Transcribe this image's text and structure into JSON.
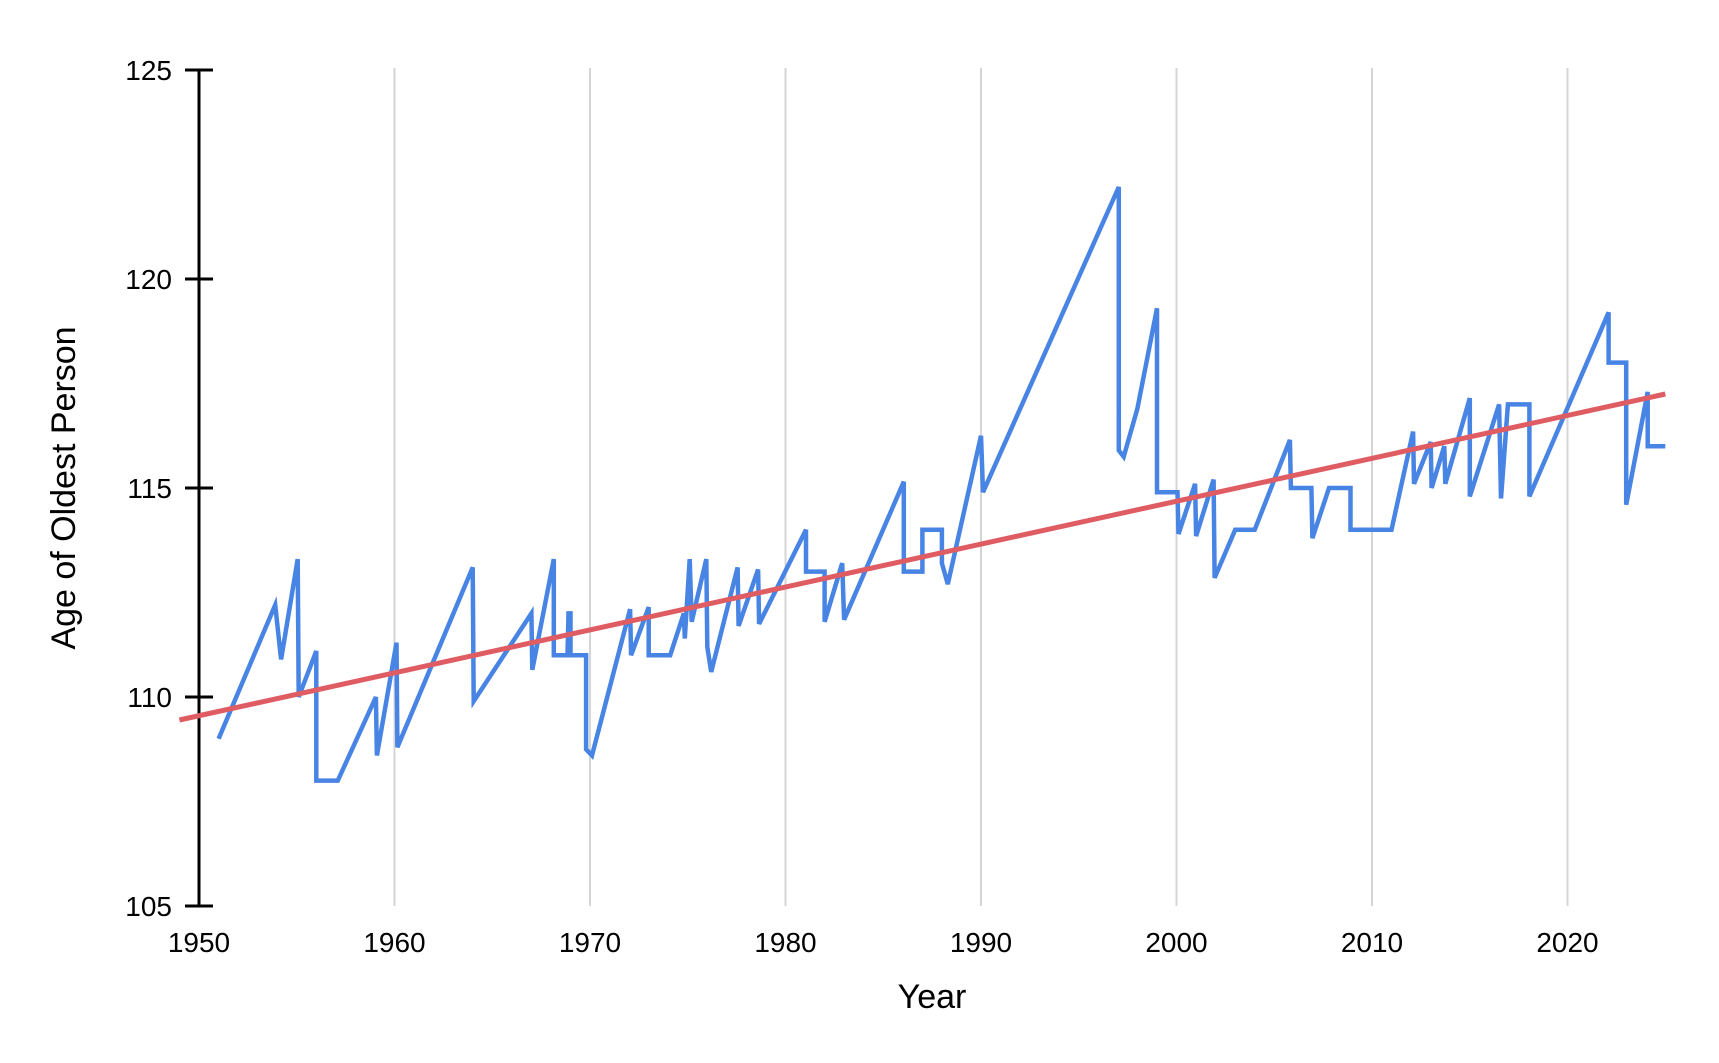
{
  "chart_data": {
    "type": "line",
    "title": "",
    "xlabel": "Year",
    "ylabel": "Age of Oldest Person",
    "xlim": [
      1950,
      2025
    ],
    "ylim": [
      105,
      125
    ],
    "x_ticks": [
      1950,
      1960,
      1970,
      1980,
      1990,
      2000,
      2010,
      2020
    ],
    "y_ticks": [
      105,
      110,
      115,
      120,
      125
    ],
    "grid": "vertical decade gridlines only",
    "legend_position": "none",
    "series": [
      {
        "name": "age-of-oldest-person",
        "style": "jagged sawtooth line",
        "color": "#4884e4",
        "stroke_width": 4.5,
        "points": [
          [
            1951.0,
            109.0
          ],
          [
            1953.9,
            112.2
          ],
          [
            1954.2,
            110.9
          ],
          [
            1955.05,
            113.3
          ],
          [
            1955.1,
            110.0
          ],
          [
            1956.0,
            111.1
          ],
          [
            1956.0,
            108.0
          ],
          [
            1957.1,
            108.0
          ],
          [
            1959.05,
            110.0
          ],
          [
            1959.1,
            108.6
          ],
          [
            1960.1,
            111.3
          ],
          [
            1960.15,
            108.8
          ],
          [
            1964.0,
            113.1
          ],
          [
            1964.05,
            109.9
          ],
          [
            1967.0,
            112.0
          ],
          [
            1967.05,
            110.65
          ],
          [
            1968.15,
            113.3
          ],
          [
            1968.15,
            111.0
          ],
          [
            1968.85,
            111.0
          ],
          [
            1968.9,
            112.0
          ],
          [
            1969.0,
            112.0
          ],
          [
            1969.0,
            111.0
          ],
          [
            1969.8,
            111.0
          ],
          [
            1969.8,
            108.75
          ],
          [
            1970.1,
            108.6
          ],
          [
            1972.05,
            112.1
          ],
          [
            1972.1,
            111.0
          ],
          [
            1973.0,
            112.15
          ],
          [
            1973.0,
            111.0
          ],
          [
            1974.1,
            111.0
          ],
          [
            1974.8,
            112.0
          ],
          [
            1974.85,
            111.4
          ],
          [
            1975.1,
            113.3
          ],
          [
            1975.2,
            111.8
          ],
          [
            1975.95,
            113.3
          ],
          [
            1976.0,
            111.2
          ],
          [
            1976.2,
            110.6
          ],
          [
            1977.55,
            113.1
          ],
          [
            1977.6,
            111.7
          ],
          [
            1978.6,
            113.05
          ],
          [
            1978.65,
            111.75
          ],
          [
            1981.05,
            114.0
          ],
          [
            1981.05,
            113.0
          ],
          [
            1982.0,
            113.0
          ],
          [
            1982.0,
            111.8
          ],
          [
            1982.9,
            113.2
          ],
          [
            1983.0,
            111.85
          ],
          [
            1986.05,
            115.15
          ],
          [
            1986.05,
            113.0
          ],
          [
            1987.0,
            113.0
          ],
          [
            1987.0,
            114.0
          ],
          [
            1988.0,
            114.0
          ],
          [
            1988.0,
            113.2
          ],
          [
            1988.3,
            112.7
          ],
          [
            1990.0,
            116.25
          ],
          [
            1990.1,
            114.9
          ],
          [
            1997.05,
            122.2
          ],
          [
            1997.05,
            115.9
          ],
          [
            1997.3,
            115.75
          ],
          [
            1998.0,
            116.9
          ],
          [
            1999.0,
            119.3
          ],
          [
            1999.0,
            114.9
          ],
          [
            2000.05,
            114.9
          ],
          [
            2000.1,
            113.9
          ],
          [
            2000.95,
            115.1
          ],
          [
            2001.0,
            113.85
          ],
          [
            2001.9,
            115.2
          ],
          [
            2001.95,
            112.85
          ],
          [
            2003.0,
            114.0
          ],
          [
            2004.0,
            114.0
          ],
          [
            2005.8,
            116.15
          ],
          [
            2005.85,
            115.0
          ],
          [
            2006.9,
            115.0
          ],
          [
            2006.95,
            113.8
          ],
          [
            2007.8,
            115.0
          ],
          [
            2008.9,
            115.0
          ],
          [
            2008.9,
            114.0
          ],
          [
            2011.0,
            114.0
          ],
          [
            2012.1,
            116.35
          ],
          [
            2012.15,
            115.1
          ],
          [
            2013.0,
            116.1
          ],
          [
            2013.05,
            115.0
          ],
          [
            2013.7,
            116.0
          ],
          [
            2013.75,
            115.1
          ],
          [
            2015.0,
            117.15
          ],
          [
            2015.0,
            114.8
          ],
          [
            2016.5,
            117.0
          ],
          [
            2016.6,
            114.75
          ],
          [
            2016.95,
            117.0
          ],
          [
            2018.05,
            117.0
          ],
          [
            2018.05,
            114.8
          ],
          [
            2022.1,
            119.2
          ],
          [
            2022.1,
            118.0
          ],
          [
            2023.0,
            118.0
          ],
          [
            2023.0,
            114.6
          ],
          [
            2024.1,
            117.3
          ],
          [
            2024.1,
            116.0
          ],
          [
            2025.0,
            116.0
          ]
        ]
      },
      {
        "name": "trend-line",
        "style": "straight linear trend",
        "color": "#e05c63",
        "stroke_width": 5,
        "points": [
          [
            1949.0,
            109.45
          ],
          [
            2025.0,
            117.25
          ]
        ]
      }
    ]
  },
  "colors": {
    "background": "#ffffff",
    "series_blue": "#4884e4",
    "trend_red": "#e05c63",
    "gridline": "#d5d5d5",
    "axis": "#000000",
    "text": "#000000"
  }
}
